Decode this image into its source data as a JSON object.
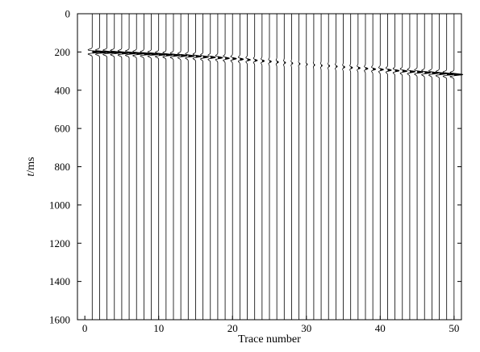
{
  "chart_data": {
    "type": "line",
    "title": "",
    "xlabel": "Trace number",
    "ylabel_italic": "t",
    "ylabel_rest": "/ms",
    "xlim": [
      -1,
      51
    ],
    "ylim": [
      1600,
      0
    ],
    "y_inverted": true,
    "grid": false,
    "legend": "none",
    "xticks": [
      0,
      10,
      20,
      30,
      40,
      50
    ],
    "yticks": [
      0,
      200,
      400,
      600,
      800,
      1000,
      1200,
      1400,
      1600
    ],
    "trace_numbers": [
      1,
      2,
      3,
      4,
      5,
      6,
      7,
      8,
      9,
      10,
      11,
      12,
      13,
      14,
      15,
      16,
      17,
      18,
      19,
      20,
      21,
      22,
      23,
      24,
      25,
      26,
      27,
      28,
      29,
      30,
      31,
      32,
      33,
      34,
      35,
      36,
      37,
      38,
      39,
      40,
      41,
      42,
      43,
      44,
      45,
      46,
      47,
      48,
      49,
      50
    ],
    "wavelet_time_ms": [
      200,
      201,
      202,
      203,
      205,
      206,
      208,
      210,
      211,
      213,
      215,
      217,
      219,
      221,
      223,
      226,
      228,
      230,
      233,
      235,
      238,
      241,
      244,
      247,
      250,
      253,
      256,
      259,
      262,
      265,
      268,
      271,
      273,
      276,
      279,
      282,
      284,
      287,
      290,
      292,
      295,
      298,
      300,
      303,
      305,
      308,
      310,
      313,
      316,
      318
    ],
    "wavelet_amplitude": [
      1.0,
      0.98,
      0.96,
      0.94,
      0.92,
      0.9,
      0.88,
      0.86,
      0.84,
      0.81,
      0.78,
      0.75,
      0.72,
      0.68,
      0.64,
      0.6,
      0.56,
      0.52,
      0.47,
      0.43,
      0.38,
      0.34,
      0.29,
      0.25,
      0.21,
      0.18,
      0.15,
      0.13,
      0.12,
      0.11,
      0.11,
      0.12,
      0.13,
      0.15,
      0.17,
      0.2,
      0.23,
      0.27,
      0.31,
      0.36,
      0.41,
      0.46,
      0.52,
      0.58,
      0.64,
      0.7,
      0.76,
      0.82,
      0.88,
      0.95
    ],
    "series": [
      {
        "name": "",
        "color": "#000000"
      }
    ]
  }
}
